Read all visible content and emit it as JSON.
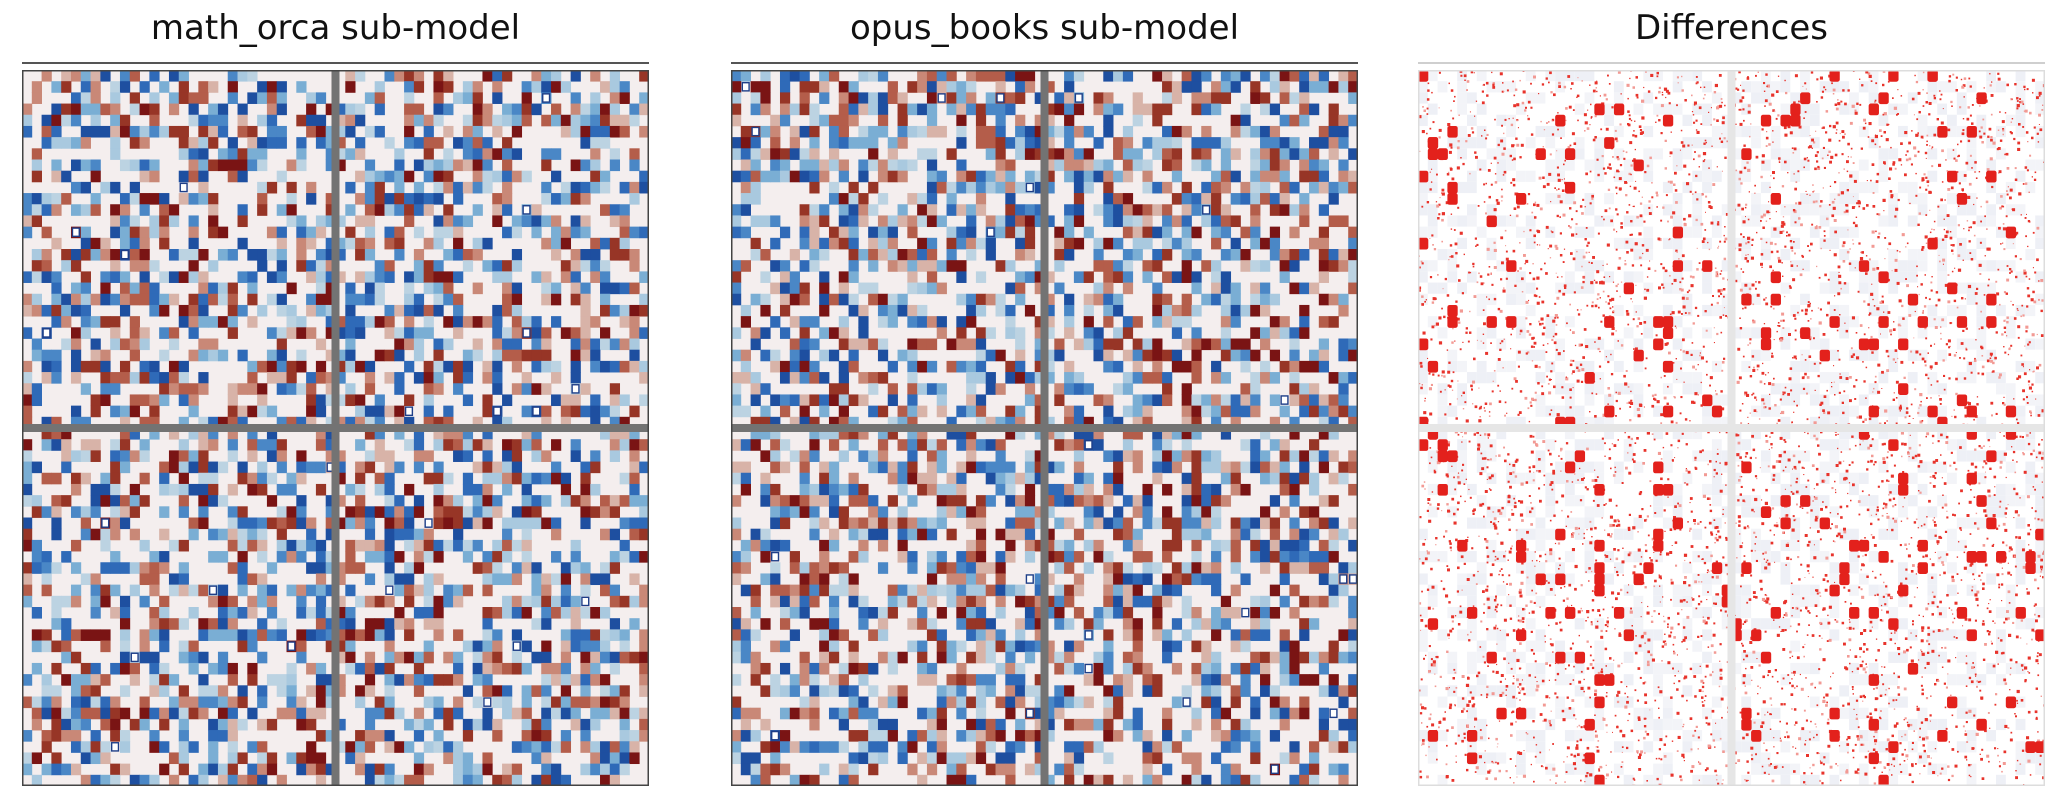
{
  "figure": {
    "panels": [
      {
        "title": "math_orca sub-model"
      },
      {
        "title": "opus_books sub-model"
      },
      {
        "title": "Differences"
      }
    ]
  },
  "chart_data": [
    {
      "type": "heatmap",
      "title": "math_orca sub-model",
      "grid": "2x2 blocks",
      "colormap": [
        "#2b5aa6",
        "#f4efef",
        "#8b1a1a"
      ],
      "axes": false
    },
    {
      "type": "heatmap",
      "title": "opus_books sub-model",
      "grid": "2x2 blocks",
      "colormap": [
        "#2b5aa6",
        "#f4efef",
        "#8b1a1a"
      ],
      "axes": false
    },
    {
      "type": "heatmap",
      "title": "Differences",
      "grid": "2x2 blocks",
      "colormap": [
        "#ffffff",
        "#e02020"
      ],
      "axes": false
    }
  ]
}
